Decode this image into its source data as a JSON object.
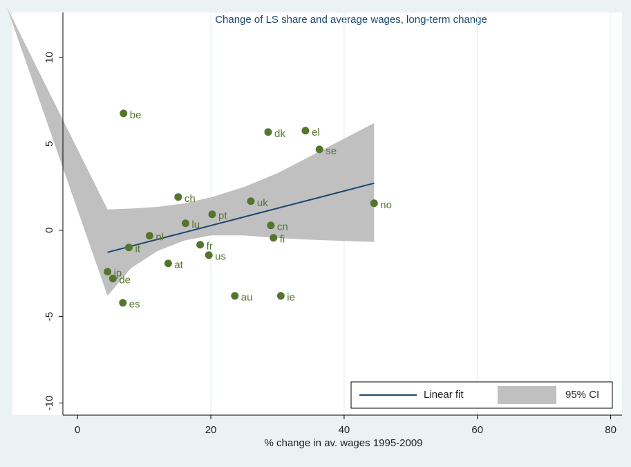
{
  "chart_data": {
    "type": "scatter",
    "title": "Change of LS share and average wages, long-term change",
    "xlabel": "% change in av. wages 1995-2009",
    "xlim": [
      -2.2,
      81.7
    ],
    "ylim": [
      -10.7,
      11
    ],
    "xticks": [
      0,
      20,
      40,
      60,
      80
    ],
    "yticks": [
      -10,
      -5,
      0,
      5,
      10
    ],
    "grid": true,
    "legend": "lower right",
    "points": {
      "color": "#55752F",
      "labels": [
        "be",
        "dk",
        "el",
        "se",
        "ch",
        "uk",
        "no",
        "pt",
        "lu",
        "cn",
        "nl",
        "fi",
        "it",
        "fr",
        "us",
        "at",
        "jp",
        "de",
        "es",
        "au",
        "ie"
      ],
      "x": [
        6.9,
        28.6,
        34.2,
        36.3,
        15.1,
        26.0,
        44.5,
        20.2,
        16.2,
        29.0,
        10.8,
        29.4,
        7.7,
        18.4,
        19.7,
        13.6,
        4.5,
        5.3,
        6.8,
        23.6,
        30.5
      ],
      "y": [
        6.76,
        5.68,
        5.76,
        4.68,
        1.92,
        1.68,
        1.56,
        0.92,
        0.4,
        0.28,
        -0.32,
        -0.44,
        -1.0,
        -0.84,
        -1.44,
        -1.92,
        -2.4,
        -2.8,
        -4.2,
        -3.8,
        -3.8
      ]
    },
    "fit": {
      "name": "Linear fit",
      "color": "#1A476F",
      "x": [
        4.5,
        44.5
      ],
      "y": [
        -1.28,
        2.72
      ]
    },
    "ci": {
      "name": "95% CI",
      "color": "#C0C0C0",
      "x": [
        -10.6,
        4.5,
        8,
        12,
        16,
        20,
        25,
        30,
        35,
        40,
        44.5
      ],
      "upper": [
        12.9,
        1.2,
        1.25,
        1.35,
        1.55,
        1.9,
        2.5,
        3.3,
        4.3,
        5.3,
        6.2
      ],
      "lower": [
        12.9,
        -3.8,
        -2.2,
        -1.2,
        -0.6,
        -0.3,
        -0.3,
        -0.45,
        -0.55,
        -0.62,
        -0.68
      ]
    }
  }
}
